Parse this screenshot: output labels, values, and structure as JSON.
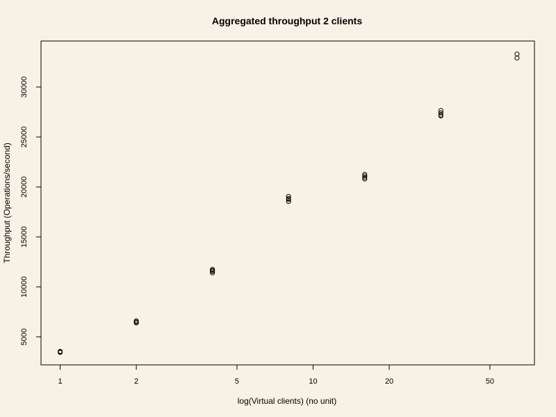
{
  "chart_data": {
    "type": "scatter",
    "title": "Aggregated throughput 2 clients",
    "xlabel": "log(Virtual clients) (no unit)",
    "ylabel": "Throughput (Operations/second)",
    "x_scale": "log",
    "xlim": [
      0.84,
      75
    ],
    "ylim": [
      2200,
      34600
    ],
    "x_ticks": [
      1,
      2,
      5,
      10,
      20,
      50
    ],
    "x_tick_labels": [
      "1",
      "2",
      "5",
      "10",
      "20",
      "50"
    ],
    "y_ticks": [
      5000,
      10000,
      15000,
      20000,
      25000,
      30000
    ],
    "y_tick_labels": [
      "5000",
      "10000",
      "15000",
      "20000",
      "25000",
      "30000"
    ],
    "grid": false,
    "legend": "none",
    "marker": "open-circle",
    "colors": {
      "background": "#f7f1e6",
      "ink": "#000000"
    },
    "points": [
      {
        "x": 1,
        "y": 3450
      },
      {
        "x": 1,
        "y": 3500
      },
      {
        "x": 1,
        "y": 3550
      },
      {
        "x": 2,
        "y": 6400
      },
      {
        "x": 2,
        "y": 6500
      },
      {
        "x": 2,
        "y": 6600
      },
      {
        "x": 4,
        "y": 11400
      },
      {
        "x": 4,
        "y": 11550
      },
      {
        "x": 4,
        "y": 11650
      },
      {
        "x": 4,
        "y": 11750
      },
      {
        "x": 8,
        "y": 18550
      },
      {
        "x": 8,
        "y": 18750
      },
      {
        "x": 8,
        "y": 18850
      },
      {
        "x": 8,
        "y": 19050
      },
      {
        "x": 16,
        "y": 20800
      },
      {
        "x": 16,
        "y": 20950
      },
      {
        "x": 16,
        "y": 21100
      },
      {
        "x": 16,
        "y": 21250
      },
      {
        "x": 32,
        "y": 27100
      },
      {
        "x": 32,
        "y": 27200
      },
      {
        "x": 32,
        "y": 27400
      },
      {
        "x": 32,
        "y": 27650
      },
      {
        "x": 64,
        "y": 32900
      },
      {
        "x": 64,
        "y": 33300
      }
    ]
  }
}
